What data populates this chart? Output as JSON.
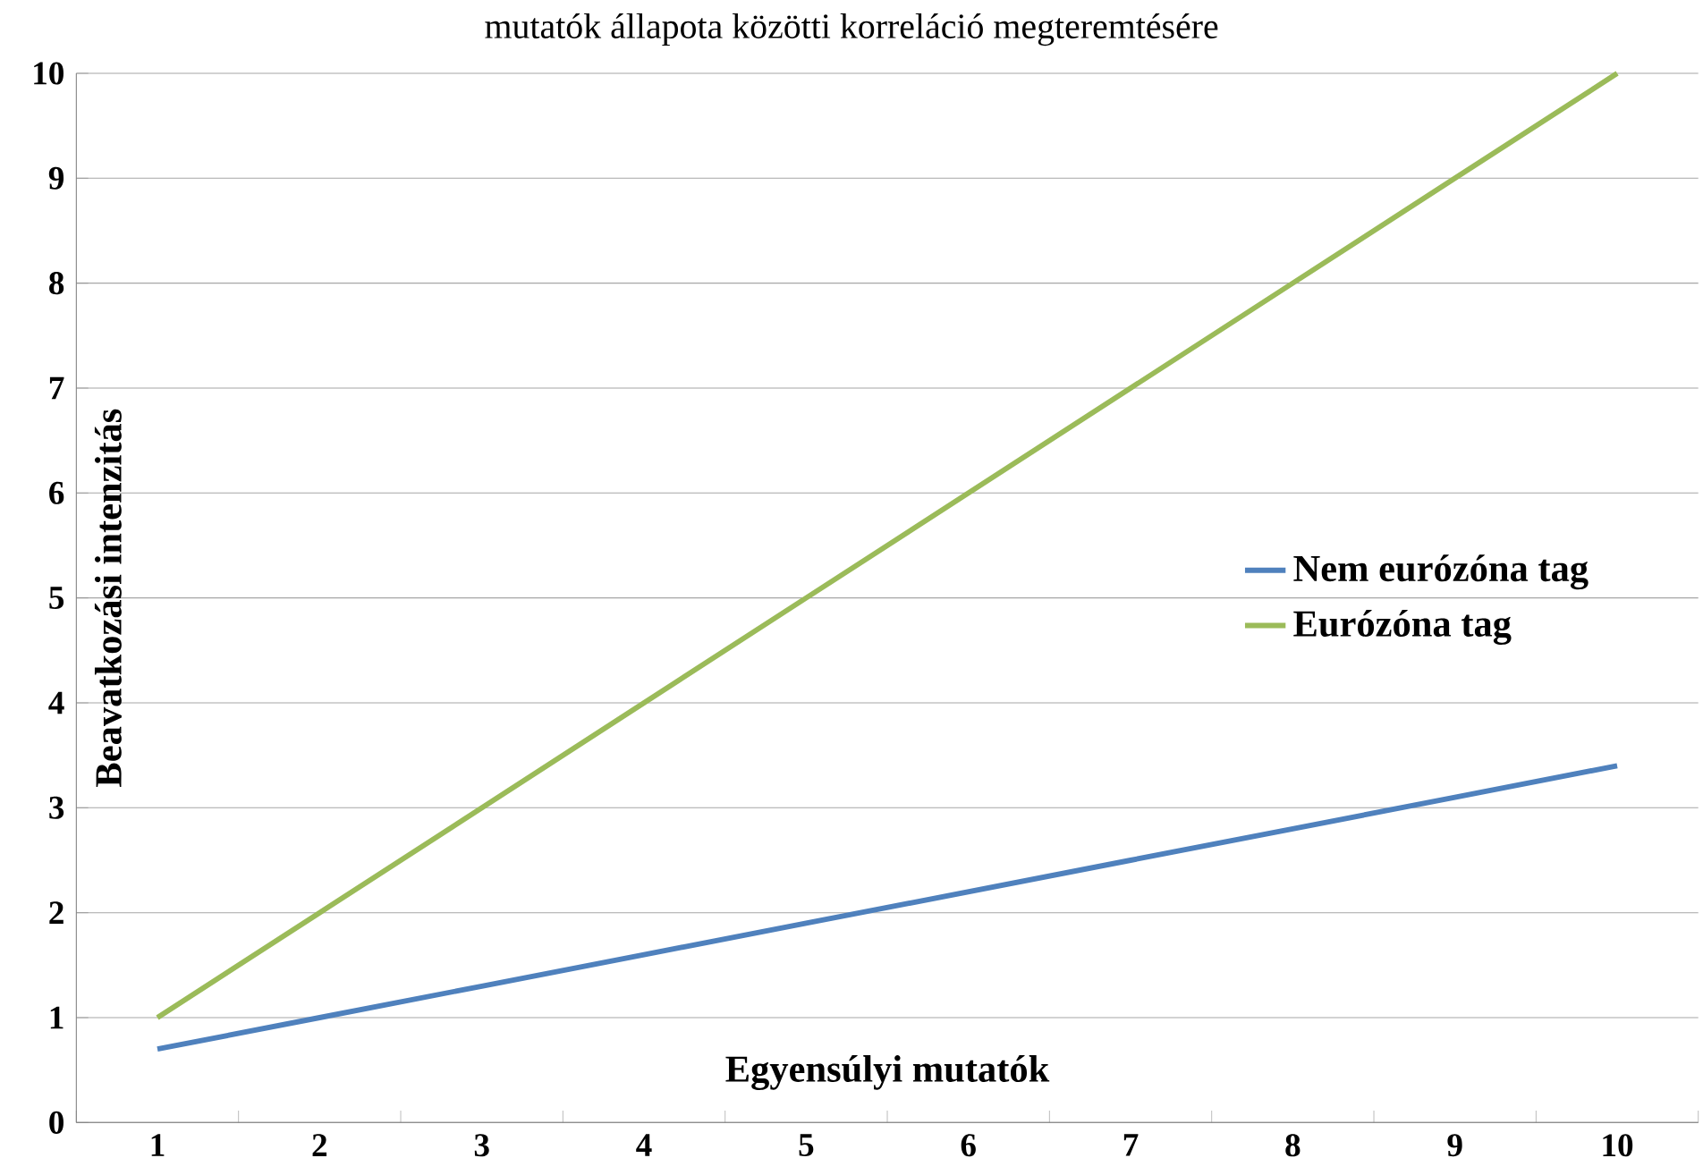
{
  "chart_data": {
    "type": "line",
    "title": "mutatók állapota közötti korreláció megteremtésére",
    "xlabel": "Egyensúlyi mutatók",
    "ylabel": "Beavatkozási intenzitás",
    "categories": [
      "1",
      "2",
      "3",
      "4",
      "5",
      "6",
      "7",
      "8",
      "9",
      "10"
    ],
    "series": [
      {
        "name": "Nem eurózóna tag",
        "color": "#4f81bd",
        "values": [
          0.7,
          1.0,
          1.3,
          1.6,
          1.9,
          2.2,
          2.5,
          2.8,
          3.1,
          3.4
        ]
      },
      {
        "name": "Eurózóna tag",
        "color": "#9bbb59",
        "values": [
          1,
          2,
          3,
          4,
          5,
          6,
          7,
          8,
          9,
          10
        ]
      }
    ],
    "ylim": [
      0,
      10
    ],
    "yticks": [
      0,
      1,
      2,
      3,
      4,
      5,
      6,
      7,
      8,
      9,
      10
    ],
    "grid": "y",
    "legend": "right",
    "marker": "none",
    "line_style": "solid"
  }
}
